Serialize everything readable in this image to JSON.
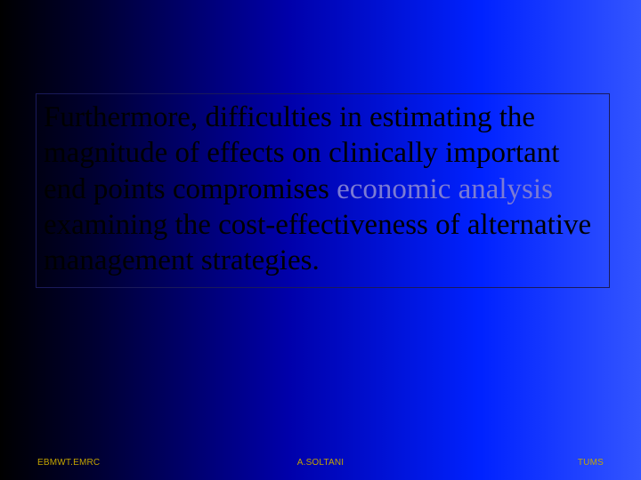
{
  "slide": {
    "background": {
      "gradient_direction": "left-to-right",
      "stops": [
        "#000000",
        "#000033",
        "#0000aa",
        "#0022ff",
        "#3355ff"
      ]
    },
    "content_box": {
      "border_color": "#1a1a5a",
      "border_width": 1
    },
    "body": {
      "text_before_link": "Furthermore, difficulties in estimating the magnitude of effects on clinically important end points compromises ",
      "link_text": "economic analysis",
      "text_after_link": " examining the cost-effectiveness of alternative management strategies.",
      "font_size": 33,
      "font_family": "Times New Roman",
      "text_color": "#000000",
      "link_color": "#7b7bd4"
    },
    "footer": {
      "left": "EBMWT.EMRC",
      "center": "A.SOLTANI",
      "right": "TUMS",
      "font_size": 10,
      "color": "#c4a500"
    }
  }
}
